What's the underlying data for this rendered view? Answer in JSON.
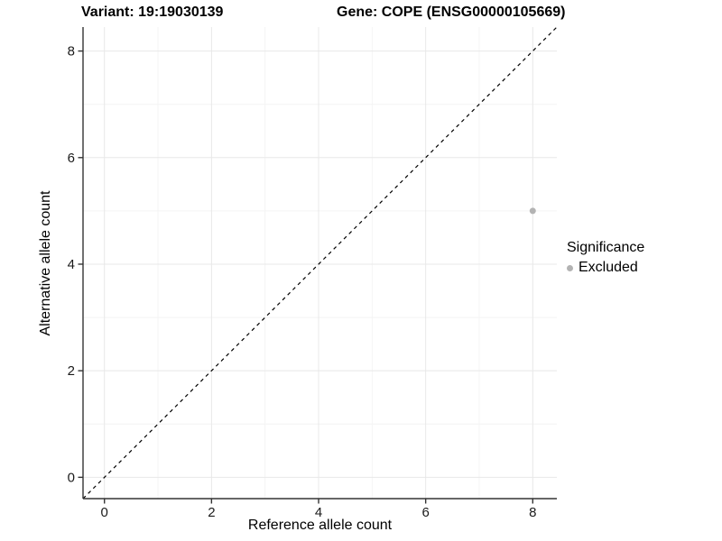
{
  "titles": {
    "variant": "Variant: 19:19030139",
    "gene": "Gene: COPE (ENSG00000105669)"
  },
  "chart_data": {
    "type": "scatter",
    "title_left": "Variant: 19:19030139",
    "title_right": "Gene: COPE (ENSG00000105669)",
    "xlabel": "Reference allele count",
    "ylabel": "Alternative allele count",
    "xlim": [
      -0.4,
      8.45
    ],
    "ylim": [
      -0.4,
      8.45
    ],
    "xticks": [
      0,
      2,
      4,
      6,
      8
    ],
    "yticks": [
      0,
      2,
      4,
      6,
      8
    ],
    "minor_ticks": [
      1,
      3,
      5,
      7
    ],
    "grid": true,
    "legend_position": "right",
    "identity_line": {
      "equation": "y = x",
      "style": "dashed",
      "color": "#000000"
    },
    "series": [
      {
        "name": "Excluded",
        "color": "#b3b3b3",
        "points": [
          {
            "x": 8,
            "y": 5
          }
        ]
      }
    ],
    "legend": {
      "title": "Significance",
      "entries": [
        {
          "label": "Excluded",
          "color": "#b3b3b3"
        }
      ]
    }
  },
  "colors": {
    "background": "#ffffff",
    "grid_major": "#e8e8e8",
    "grid_minor": "#f4f4f4",
    "axis": "#333333",
    "tick_text": "#1a1a1a",
    "point": "#b3b3b3",
    "identity_line": "#000000"
  }
}
